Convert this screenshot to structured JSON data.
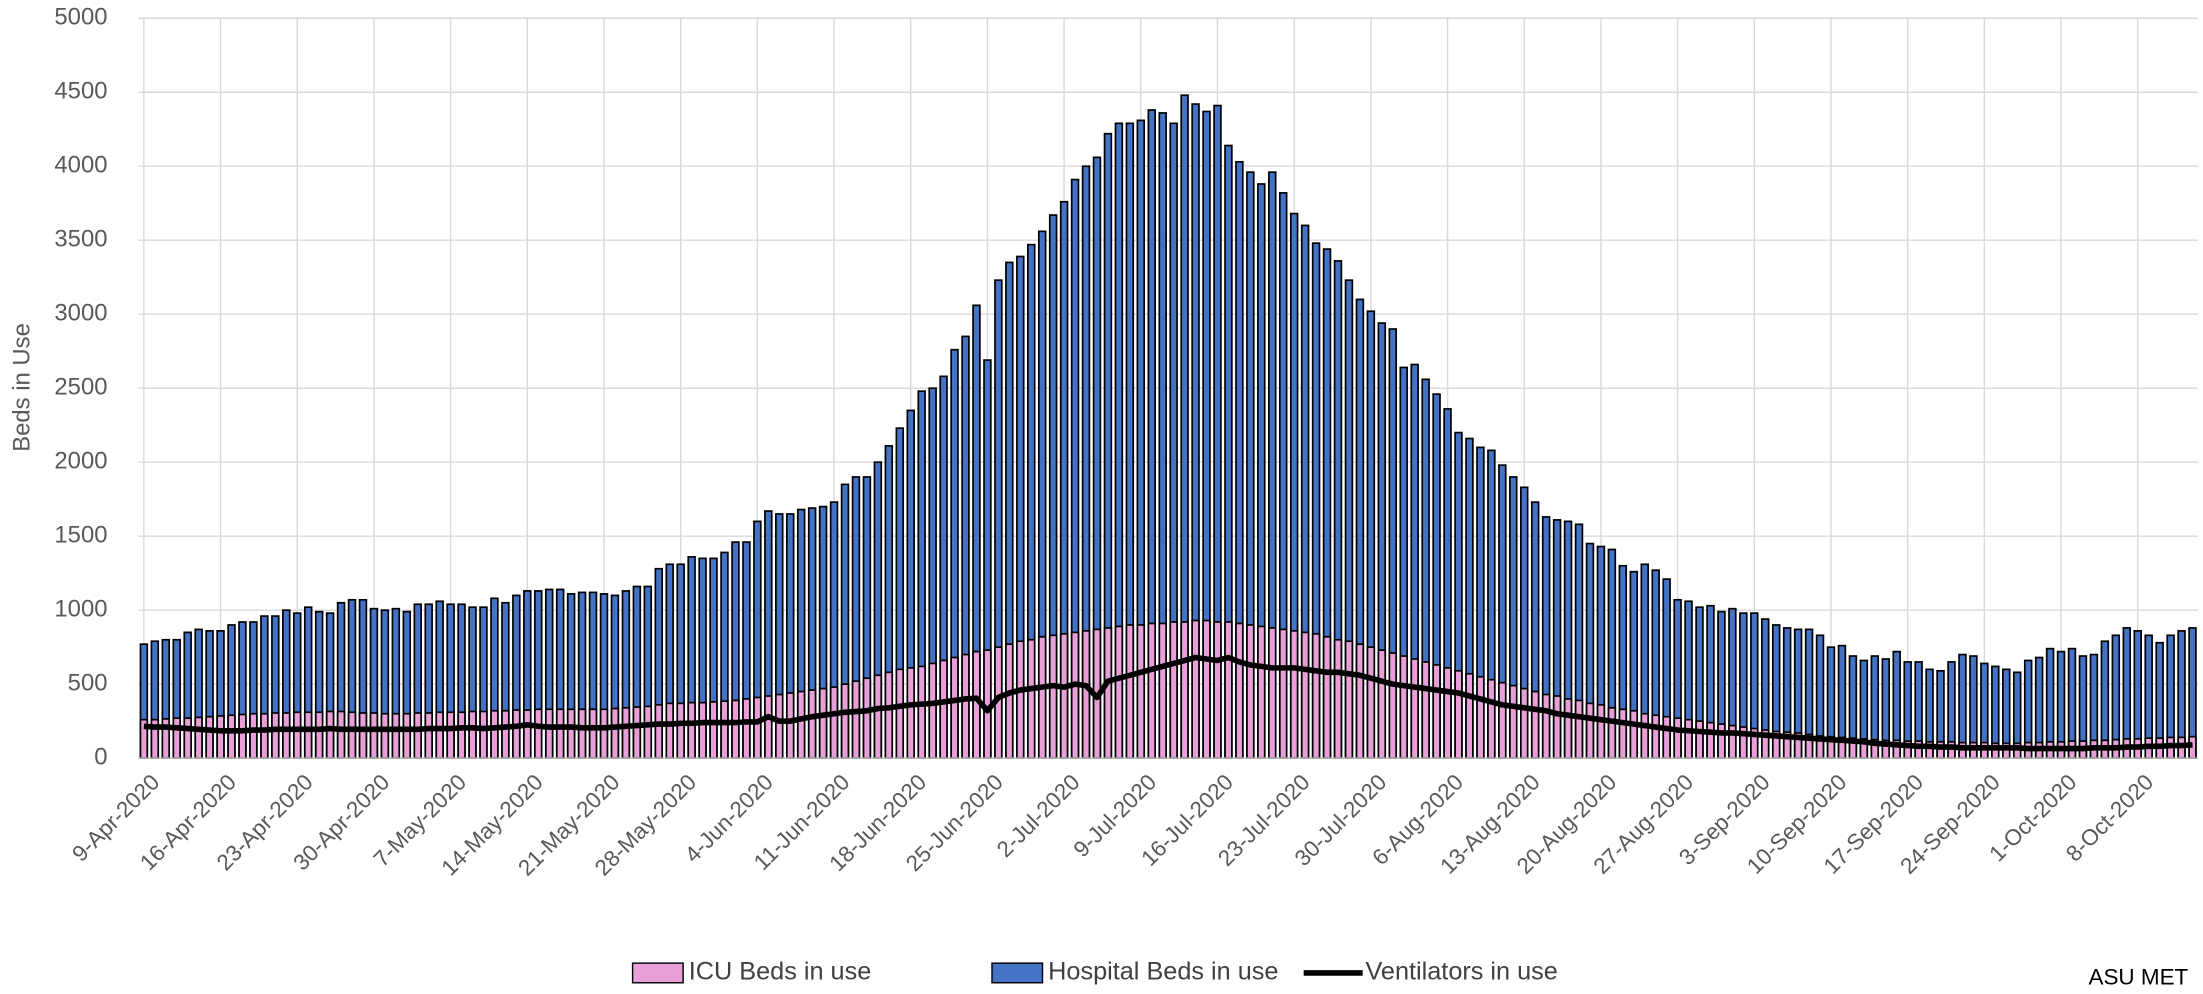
{
  "chart_data": {
    "type": "bar",
    "y_label": "Beds in Use",
    "source": "ASU MET",
    "grid": true,
    "legend": "bottom",
    "ylim": [
      0,
      5000
    ],
    "yticks": [
      0,
      500,
      1000,
      1500,
      2000,
      2500,
      3000,
      3500,
      4000,
      4500,
      5000
    ],
    "categories": [
      "9-Apr-2020",
      null,
      null,
      null,
      null,
      null,
      null,
      "16-Apr-2020",
      null,
      null,
      null,
      null,
      null,
      null,
      "23-Apr-2020",
      null,
      null,
      null,
      null,
      null,
      null,
      "30-Apr-2020",
      null,
      null,
      null,
      null,
      null,
      null,
      "7-May-2020",
      null,
      null,
      null,
      null,
      null,
      null,
      "14-May-2020",
      null,
      null,
      null,
      null,
      null,
      null,
      "21-May-2020",
      null,
      null,
      null,
      null,
      null,
      null,
      "28-May-2020",
      null,
      null,
      null,
      null,
      null,
      null,
      "4-Jun-2020",
      null,
      null,
      null,
      null,
      null,
      null,
      "11-Jun-2020",
      null,
      null,
      null,
      null,
      null,
      null,
      "18-Jun-2020",
      null,
      null,
      null,
      null,
      null,
      null,
      "25-Jun-2020",
      null,
      null,
      null,
      null,
      null,
      null,
      "2-Jul-2020",
      null,
      null,
      null,
      null,
      null,
      null,
      "9-Jul-2020",
      null,
      null,
      null,
      null,
      null,
      null,
      "16-Jul-2020",
      null,
      null,
      null,
      null,
      null,
      null,
      "23-Jul-2020",
      null,
      null,
      null,
      null,
      null,
      null,
      "30-Jul-2020",
      null,
      null,
      null,
      null,
      null,
      null,
      "6-Aug-2020",
      null,
      null,
      null,
      null,
      null,
      null,
      "13-Aug-2020",
      null,
      null,
      null,
      null,
      null,
      null,
      "20-Aug-2020",
      null,
      null,
      null,
      null,
      null,
      null,
      "27-Aug-2020",
      null,
      null,
      null,
      null,
      null,
      null,
      "3-Sep-2020",
      null,
      null,
      null,
      null,
      null,
      null,
      "10-Sep-2020",
      null,
      null,
      null,
      null,
      null,
      null,
      "17-Sep-2020",
      null,
      null,
      null,
      null,
      null,
      null,
      "24-Sep-2020",
      null,
      null,
      null,
      null,
      null,
      null,
      "1-Oct-2020",
      null,
      null,
      null,
      null,
      null,
      null,
      "8-Oct-2020",
      null,
      null,
      null,
      null,
      null
    ],
    "series": [
      {
        "name": "ICU Beds in use",
        "color": "#e89fd8",
        "type": "bar",
        "values": [
          260,
          260,
          265,
          270,
          270,
          275,
          280,
          285,
          290,
          295,
          300,
          300,
          305,
          305,
          310,
          310,
          310,
          315,
          315,
          310,
          305,
          305,
          300,
          300,
          300,
          305,
          305,
          310,
          310,
          310,
          315,
          315,
          320,
          320,
          325,
          325,
          330,
          330,
          330,
          330,
          330,
          330,
          330,
          335,
          340,
          345,
          350,
          360,
          370,
          370,
          375,
          375,
          380,
          385,
          390,
          400,
          410,
          420,
          430,
          440,
          450,
          460,
          470,
          480,
          500,
          520,
          540,
          560,
          580,
          600,
          610,
          620,
          640,
          660,
          680,
          700,
          720,
          730,
          750,
          770,
          790,
          800,
          820,
          830,
          840,
          850,
          860,
          870,
          880,
          890,
          900,
          900,
          910,
          910,
          920,
          920,
          930,
          930,
          920,
          920,
          910,
          900,
          890,
          880,
          870,
          860,
          850,
          840,
          820,
          800,
          790,
          770,
          750,
          730,
          710,
          690,
          670,
          650,
          630,
          610,
          590,
          570,
          550,
          530,
          510,
          490,
          470,
          450,
          430,
          420,
          400,
          390,
          370,
          360,
          340,
          330,
          320,
          300,
          290,
          280,
          270,
          260,
          250,
          240,
          230,
          220,
          210,
          200,
          190,
          180,
          175,
          170,
          160,
          150,
          145,
          140,
          135,
          130,
          125,
          120,
          120,
          115,
          115,
          110,
          110,
          110,
          105,
          105,
          105,
          100,
          100,
          100,
          105,
          105,
          110,
          110,
          115,
          115,
          120,
          120,
          125,
          130,
          130,
          135,
          135,
          140,
          140,
          145
        ]
      },
      {
        "name": "Hospital Beds in use",
        "color": "#4472c4",
        "type": "bar",
        "values": [
          770,
          790,
          800,
          800,
          850,
          870,
          860,
          860,
          900,
          920,
          920,
          960,
          960,
          1000,
          980,
          1020,
          990,
          980,
          1050,
          1070,
          1070,
          1010,
          1000,
          1010,
          990,
          1040,
          1040,
          1060,
          1040,
          1040,
          1020,
          1020,
          1080,
          1050,
          1100,
          1130,
          1130,
          1140,
          1140,
          1110,
          1120,
          1120,
          1110,
          1100,
          1130,
          1160,
          1160,
          1280,
          1310,
          1310,
          1360,
          1350,
          1350,
          1390,
          1460,
          1460,
          1600,
          1670,
          1650,
          1650,
          1680,
          1690,
          1700,
          1730,
          1850,
          1900,
          1900,
          2000,
          2110,
          2230,
          2350,
          2480,
          2500,
          2580,
          2760,
          2850,
          3060,
          2690,
          3230,
          3350,
          3390,
          3470,
          3560,
          3670,
          3760,
          3910,
          4000,
          4060,
          4220,
          4290,
          4290,
          4310,
          4380,
          4360,
          4290,
          4480,
          4420,
          4370,
          4410,
          4140,
          4030,
          3960,
          3880,
          3960,
          3820,
          3680,
          3600,
          3480,
          3440,
          3360,
          3230,
          3100,
          3020,
          2940,
          2900,
          2640,
          2660,
          2560,
          2460,
          2360,
          2200,
          2160,
          2100,
          2080,
          1980,
          1900,
          1830,
          1730,
          1630,
          1610,
          1600,
          1580,
          1450,
          1430,
          1410,
          1300,
          1260,
          1310,
          1270,
          1210,
          1070,
          1060,
          1020,
          1030,
          990,
          1010,
          980,
          980,
          940,
          900,
          880,
          870,
          870,
          830,
          750,
          760,
          690,
          660,
          690,
          670,
          720,
          650,
          650,
          600,
          590,
          650,
          700,
          690,
          640,
          620,
          600,
          580,
          660,
          680,
          740,
          720,
          740,
          690,
          700,
          790,
          830,
          880,
          860,
          830,
          780,
          830,
          860,
          880
        ]
      },
      {
        "name": "Ventilators in use",
        "color": "#000000",
        "type": "line",
        "values": [
          215,
          210,
          210,
          205,
          200,
          195,
          190,
          185,
          185,
          185,
          190,
          190,
          195,
          195,
          195,
          195,
          195,
          200,
          195,
          195,
          195,
          195,
          195,
          195,
          195,
          195,
          200,
          200,
          200,
          205,
          205,
          200,
          205,
          210,
          215,
          225,
          215,
          210,
          210,
          210,
          205,
          205,
          205,
          210,
          215,
          220,
          225,
          230,
          230,
          235,
          235,
          240,
          240,
          240,
          240,
          245,
          245,
          280,
          250,
          250,
          265,
          280,
          290,
          300,
          310,
          315,
          320,
          335,
          340,
          350,
          360,
          365,
          370,
          380,
          390,
          400,
          405,
          320,
          410,
          440,
          460,
          470,
          480,
          490,
          480,
          500,
          490,
          410,
          520,
          540,
          560,
          580,
          600,
          620,
          640,
          660,
          680,
          670,
          660,
          680,
          650,
          630,
          620,
          610,
          610,
          610,
          600,
          590,
          580,
          580,
          570,
          560,
          540,
          520,
          500,
          490,
          480,
          470,
          460,
          450,
          440,
          420,
          400,
          380,
          360,
          350,
          340,
          330,
          320,
          300,
          290,
          280,
          270,
          260,
          250,
          240,
          230,
          220,
          210,
          200,
          190,
          185,
          180,
          175,
          170,
          170,
          165,
          160,
          155,
          150,
          145,
          140,
          135,
          130,
          125,
          120,
          115,
          110,
          100,
          95,
          90,
          85,
          80,
          80,
          75,
          75,
          70,
          70,
          70,
          70,
          70,
          70,
          65,
          65,
          65,
          65,
          65,
          65,
          70,
          70,
          70,
          75,
          75,
          80,
          80,
          85,
          85,
          90
        ]
      }
    ]
  }
}
